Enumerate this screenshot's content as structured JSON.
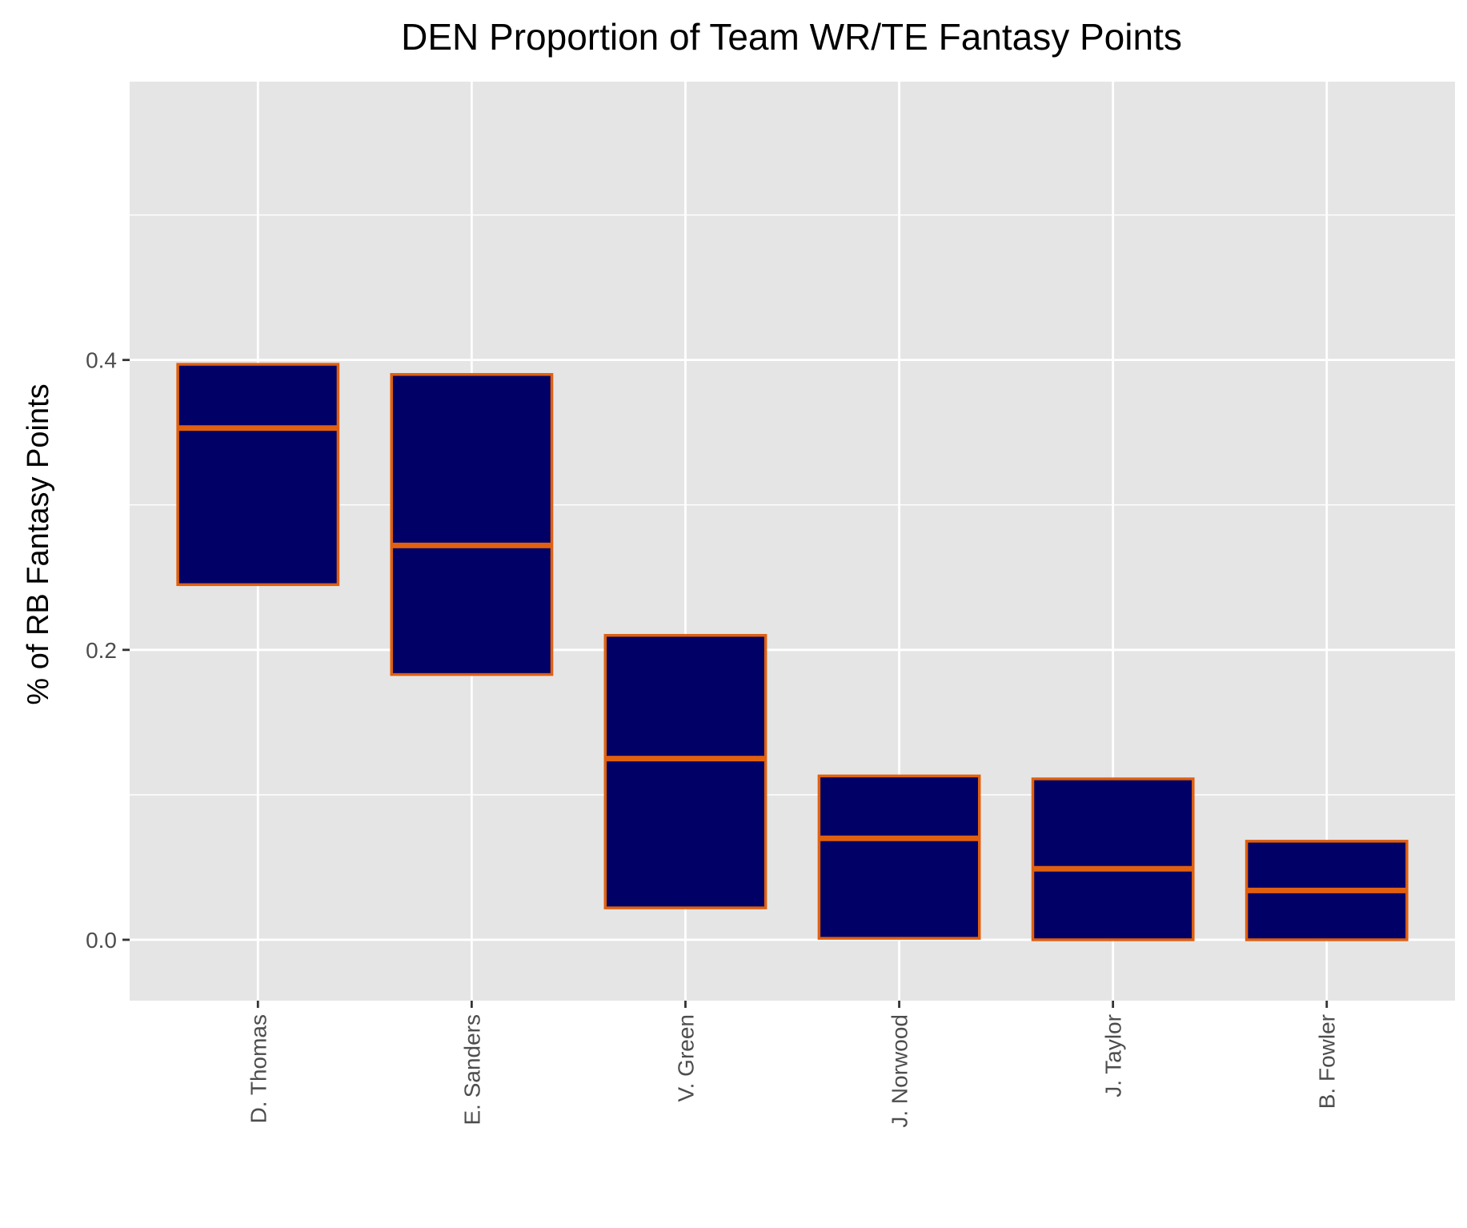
{
  "chart_data": {
    "type": "boxplot",
    "title": "DEN Proportion of Team WR/TE Fantasy Points",
    "xlabel": "",
    "ylabel": "% of RB Fantasy Points",
    "ylim": [
      -0.042,
      0.592
    ],
    "y_ticks": [
      0.0,
      0.2,
      0.4
    ],
    "y_tick_labels": [
      "0.0",
      "0.2",
      "0.4"
    ],
    "y_minor_ticks": [
      0.1,
      0.3,
      0.5
    ],
    "grid": true,
    "legend": "none",
    "categories": [
      "D. Thomas",
      "E. Sanders",
      "V. Green",
      "J. Norwood",
      "J. Taylor",
      "B. Fowler"
    ],
    "boxes": [
      {
        "q1": 0.245,
        "median": 0.353,
        "q3": 0.397
      },
      {
        "q1": 0.183,
        "median": 0.272,
        "q3": 0.39
      },
      {
        "q1": 0.022,
        "median": 0.125,
        "q3": 0.21
      },
      {
        "q1": 0.001,
        "median": 0.07,
        "q3": 0.113
      },
      {
        "q1": 0.0,
        "median": 0.049,
        "q3": 0.111
      },
      {
        "q1": 0.0,
        "median": 0.034,
        "q3": 0.068
      }
    ],
    "colors": {
      "box_fill": "#000066",
      "box_outline": "#e06010",
      "panel_background": "#e5e5e5",
      "grid_line": "#ffffff",
      "axis_text": "#4d4d4d",
      "tick_mark": "#333333"
    }
  }
}
